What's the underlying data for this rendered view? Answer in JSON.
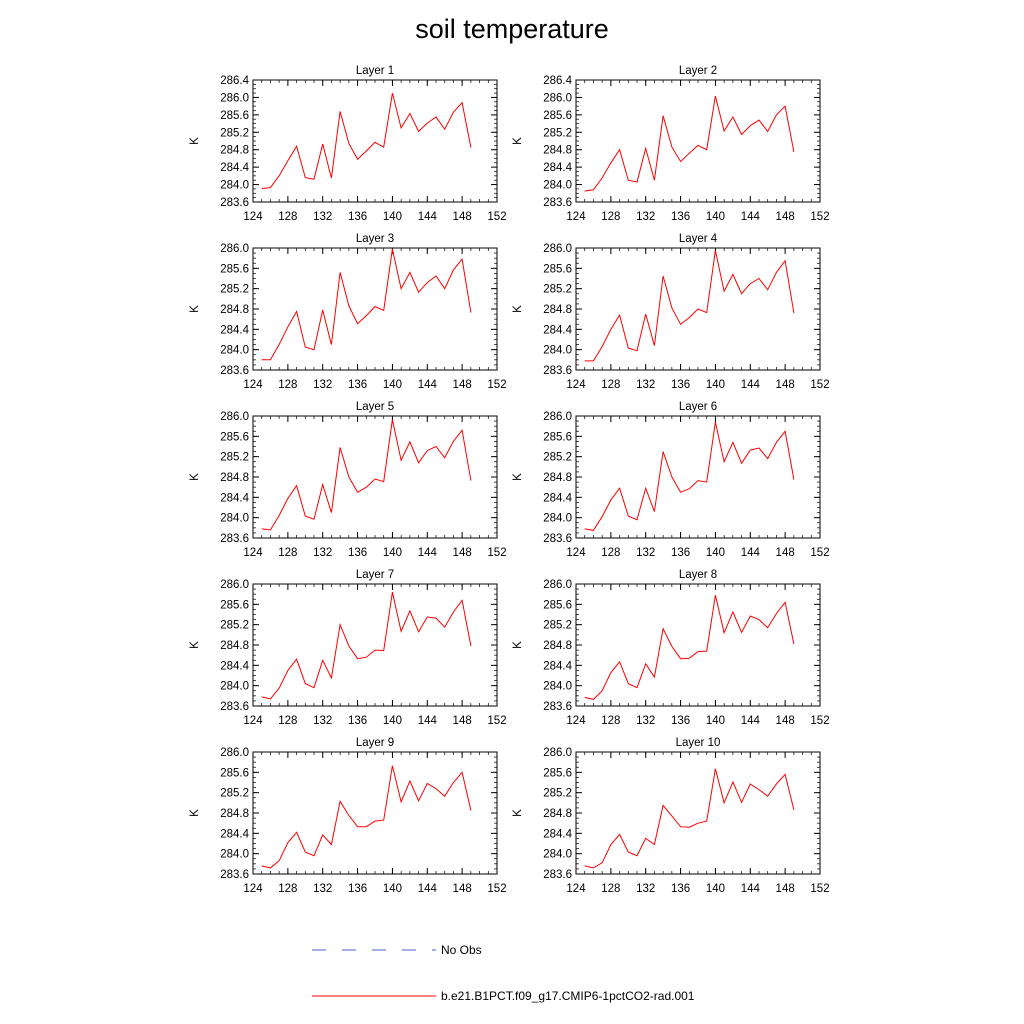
{
  "title": "soil temperature",
  "legend": {
    "items": [
      {
        "label": "No Obs",
        "color": "#4a5fd0",
        "dash": true
      },
      {
        "label": "b.e21.B1PCT.f09_g17.CMIP6-1pctCO2-rad.001",
        "color": "#ff0000",
        "dash": false
      }
    ]
  },
  "chart_data": [
    {
      "type": "line",
      "title": "Layer 1",
      "ylabel": "K",
      "xlim": [
        124,
        152
      ],
      "ylim": [
        283.6,
        286.4
      ],
      "xticks": [
        "124",
        "128",
        "132",
        "136",
        "140",
        "144",
        "148",
        "152"
      ],
      "yticks": [
        "283.6",
        "284.0",
        "284.4",
        "284.8",
        "285.2",
        "285.6",
        "286.0",
        "286.4"
      ],
      "x": [
        125,
        126,
        127,
        128,
        129,
        130,
        131,
        132,
        133,
        134,
        135,
        136,
        137,
        138,
        139,
        140,
        141,
        142,
        143,
        144,
        145,
        146,
        147,
        148,
        149
      ],
      "series": [
        {
          "color": "#ff0000",
          "values": [
            283.91,
            283.93,
            284.2,
            284.55,
            284.88,
            284.16,
            284.12,
            284.93,
            284.15,
            285.68,
            284.94,
            284.58,
            284.77,
            284.97,
            284.86,
            286.1,
            285.3,
            285.63,
            285.22,
            285.41,
            285.55,
            285.27,
            285.66,
            285.88,
            284.85
          ]
        }
      ]
    },
    {
      "type": "line",
      "title": "Layer 2",
      "ylabel": "K",
      "xlim": [
        124,
        152
      ],
      "ylim": [
        283.6,
        286.4
      ],
      "xticks": [
        "124",
        "128",
        "132",
        "136",
        "140",
        "144",
        "148",
        "152"
      ],
      "yticks": [
        "283.6",
        "284.0",
        "284.4",
        "284.8",
        "285.2",
        "285.6",
        "286.0",
        "286.4"
      ],
      "x": [
        125,
        126,
        127,
        128,
        129,
        130,
        131,
        132,
        133,
        134,
        135,
        136,
        137,
        138,
        139,
        140,
        141,
        142,
        143,
        144,
        145,
        146,
        147,
        148,
        149
      ],
      "series": [
        {
          "color": "#ff0000",
          "values": [
            283.85,
            283.88,
            284.15,
            284.5,
            284.8,
            284.1,
            284.06,
            284.83,
            284.1,
            285.58,
            284.86,
            284.53,
            284.72,
            284.9,
            284.8,
            286.03,
            285.23,
            285.55,
            285.15,
            285.35,
            285.48,
            285.22,
            285.6,
            285.8,
            284.75
          ]
        }
      ]
    },
    {
      "type": "line",
      "title": "Layer 3",
      "ylabel": "K",
      "xlim": [
        124,
        152
      ],
      "ylim": [
        283.6,
        286.0
      ],
      "xticks": [
        "124",
        "128",
        "132",
        "136",
        "140",
        "144",
        "148",
        "152"
      ],
      "yticks": [
        "283.6",
        "284.0",
        "284.4",
        "284.8",
        "285.2",
        "285.6",
        "286.0"
      ],
      "x": [
        125,
        126,
        127,
        128,
        129,
        130,
        131,
        132,
        133,
        134,
        135,
        136,
        137,
        138,
        139,
        140,
        141,
        142,
        143,
        144,
        145,
        146,
        147,
        148,
        149
      ],
      "series": [
        {
          "color": "#ff0000",
          "values": [
            283.8,
            283.8,
            284.1,
            284.45,
            284.75,
            284.05,
            284.0,
            284.78,
            284.1,
            285.52,
            284.86,
            284.51,
            284.67,
            284.85,
            284.77,
            285.98,
            285.2,
            285.52,
            285.13,
            285.32,
            285.45,
            285.2,
            285.57,
            285.78,
            284.73
          ]
        }
      ]
    },
    {
      "type": "line",
      "title": "Layer 4",
      "ylabel": "K",
      "xlim": [
        124,
        152
      ],
      "ylim": [
        283.6,
        286.0
      ],
      "xticks": [
        "124",
        "128",
        "132",
        "136",
        "140",
        "144",
        "148",
        "152"
      ],
      "yticks": [
        "283.6",
        "284.0",
        "284.4",
        "284.8",
        "285.2",
        "285.6",
        "286.0"
      ],
      "x": [
        125,
        126,
        127,
        128,
        129,
        130,
        131,
        132,
        133,
        134,
        135,
        136,
        137,
        138,
        139,
        140,
        141,
        142,
        143,
        144,
        145,
        146,
        147,
        148,
        149
      ],
      "series": [
        {
          "color": "#ff0000",
          "values": [
            283.78,
            283.78,
            284.06,
            284.4,
            284.68,
            284.03,
            283.98,
            284.7,
            284.08,
            285.45,
            284.82,
            284.5,
            284.63,
            284.8,
            284.73,
            285.95,
            285.15,
            285.48,
            285.1,
            285.3,
            285.4,
            285.18,
            285.52,
            285.75,
            284.72
          ]
        }
      ]
    },
    {
      "type": "line",
      "title": "Layer 5",
      "ylabel": "K",
      "xlim": [
        124,
        152
      ],
      "ylim": [
        283.6,
        286.0
      ],
      "xticks": [
        "124",
        "128",
        "132",
        "136",
        "140",
        "144",
        "148",
        "152"
      ],
      "yticks": [
        "283.6",
        "284.0",
        "284.4",
        "284.8",
        "285.2",
        "285.6",
        "286.0"
      ],
      "x": [
        125,
        126,
        127,
        128,
        129,
        130,
        131,
        132,
        133,
        134,
        135,
        136,
        137,
        138,
        139,
        140,
        141,
        142,
        143,
        144,
        145,
        146,
        147,
        148,
        149
      ],
      "series": [
        {
          "color": "#ff0000",
          "values": [
            283.78,
            283.76,
            284.04,
            284.38,
            284.63,
            284.03,
            283.97,
            284.65,
            284.1,
            285.38,
            284.8,
            284.5,
            284.6,
            284.76,
            284.71,
            285.93,
            285.13,
            285.49,
            285.08,
            285.32,
            285.4,
            285.18,
            285.5,
            285.72,
            284.73
          ]
        }
      ]
    },
    {
      "type": "line",
      "title": "Layer 6",
      "ylabel": "K",
      "xlim": [
        124,
        152
      ],
      "ylim": [
        283.6,
        286.0
      ],
      "xticks": [
        "124",
        "128",
        "132",
        "136",
        "140",
        "144",
        "148",
        "152"
      ],
      "yticks": [
        "283.6",
        "284.0",
        "284.4",
        "284.8",
        "285.2",
        "285.6",
        "286.0"
      ],
      "x": [
        125,
        126,
        127,
        128,
        129,
        130,
        131,
        132,
        133,
        134,
        135,
        136,
        137,
        138,
        139,
        140,
        141,
        142,
        143,
        144,
        145,
        146,
        147,
        148,
        149
      ],
      "series": [
        {
          "color": "#ff0000",
          "values": [
            283.78,
            283.75,
            284.02,
            284.35,
            284.58,
            284.03,
            283.96,
            284.58,
            284.12,
            285.3,
            284.8,
            284.5,
            284.57,
            284.73,
            284.7,
            285.88,
            285.1,
            285.48,
            285.07,
            285.33,
            285.37,
            285.16,
            285.48,
            285.7,
            284.75
          ]
        }
      ]
    },
    {
      "type": "line",
      "title": "Layer 7",
      "ylabel": "K",
      "xlim": [
        124,
        152
      ],
      "ylim": [
        283.6,
        286.0
      ],
      "xticks": [
        "124",
        "128",
        "132",
        "136",
        "140",
        "144",
        "148",
        "152"
      ],
      "yticks": [
        "283.6",
        "284.0",
        "284.4",
        "284.8",
        "285.2",
        "285.6",
        "286.0"
      ],
      "x": [
        125,
        126,
        127,
        128,
        129,
        130,
        131,
        132,
        133,
        134,
        135,
        136,
        137,
        138,
        139,
        140,
        141,
        142,
        143,
        144,
        145,
        146,
        147,
        148,
        149
      ],
      "series": [
        {
          "color": "#ff0000",
          "values": [
            283.78,
            283.74,
            283.95,
            284.3,
            284.52,
            284.04,
            283.96,
            284.5,
            284.15,
            285.2,
            284.78,
            284.53,
            284.56,
            284.7,
            284.69,
            285.84,
            285.07,
            285.47,
            285.06,
            285.35,
            285.33,
            285.15,
            285.45,
            285.68,
            284.78
          ]
        }
      ]
    },
    {
      "type": "line",
      "title": "Layer 8",
      "ylabel": "K",
      "xlim": [
        124,
        152
      ],
      "ylim": [
        283.6,
        286.0
      ],
      "xticks": [
        "124",
        "128",
        "132",
        "136",
        "140",
        "144",
        "148",
        "152"
      ],
      "yticks": [
        "283.6",
        "284.0",
        "284.4",
        "284.8",
        "285.2",
        "285.6",
        "286.0"
      ],
      "x": [
        125,
        126,
        127,
        128,
        129,
        130,
        131,
        132,
        133,
        134,
        135,
        136,
        137,
        138,
        139,
        140,
        141,
        142,
        143,
        144,
        145,
        146,
        147,
        148,
        149
      ],
      "series": [
        {
          "color": "#ff0000",
          "values": [
            283.77,
            283.73,
            283.9,
            284.26,
            284.47,
            284.04,
            283.96,
            284.43,
            284.17,
            285.12,
            284.77,
            284.53,
            284.54,
            284.67,
            284.68,
            285.78,
            285.04,
            285.45,
            285.05,
            285.37,
            285.3,
            285.14,
            285.42,
            285.64,
            284.82
          ]
        }
      ]
    },
    {
      "type": "line",
      "title": "Layer 9",
      "ylabel": "K",
      "xlim": [
        124,
        152
      ],
      "ylim": [
        283.6,
        286.0
      ],
      "xticks": [
        "124",
        "128",
        "132",
        "136",
        "140",
        "144",
        "148",
        "152"
      ],
      "yticks": [
        "283.6",
        "284.0",
        "284.4",
        "284.8",
        "285.2",
        "285.6",
        "286.0"
      ],
      "x": [
        125,
        126,
        127,
        128,
        129,
        130,
        131,
        132,
        133,
        134,
        135,
        136,
        137,
        138,
        139,
        140,
        141,
        142,
        143,
        144,
        145,
        146,
        147,
        148,
        149
      ],
      "series": [
        {
          "color": "#ff0000",
          "values": [
            283.76,
            283.72,
            283.86,
            284.22,
            284.42,
            284.03,
            283.96,
            284.37,
            284.18,
            285.03,
            284.75,
            284.53,
            284.53,
            284.64,
            284.66,
            285.73,
            285.02,
            285.43,
            285.04,
            285.38,
            285.28,
            285.13,
            285.4,
            285.6,
            284.85
          ]
        }
      ]
    },
    {
      "type": "line",
      "title": "Layer 10",
      "ylabel": "K",
      "xlim": [
        124,
        152
      ],
      "ylim": [
        283.6,
        286.0
      ],
      "xticks": [
        "124",
        "128",
        "132",
        "136",
        "140",
        "144",
        "148",
        "152"
      ],
      "yticks": [
        "283.6",
        "284.0",
        "284.4",
        "284.8",
        "285.2",
        "285.6",
        "286.0"
      ],
      "x": [
        125,
        126,
        127,
        128,
        129,
        130,
        131,
        132,
        133,
        134,
        135,
        136,
        137,
        138,
        139,
        140,
        141,
        142,
        143,
        144,
        145,
        146,
        147,
        148,
        149
      ],
      "series": [
        {
          "color": "#ff0000",
          "values": [
            283.76,
            283.72,
            283.82,
            284.18,
            284.38,
            284.03,
            283.96,
            284.3,
            284.18,
            284.95,
            284.74,
            284.53,
            284.52,
            284.6,
            284.64,
            285.67,
            285.0,
            285.41,
            285.01,
            285.37,
            285.26,
            285.13,
            285.37,
            285.56,
            284.86
          ]
        }
      ]
    }
  ]
}
